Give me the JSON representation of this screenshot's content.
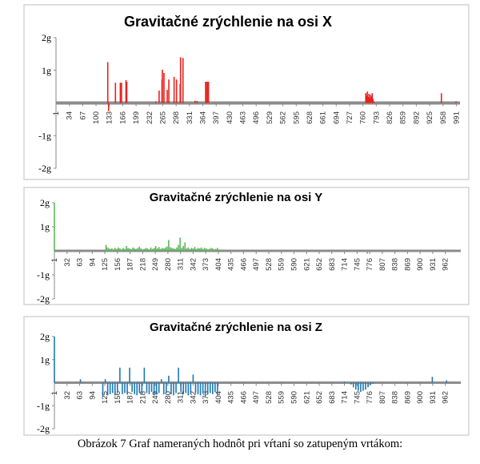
{
  "caption": "Obrázok 7 Graf nameraných hodnôt pri vŕtaní so zatupeným vrtákom:",
  "chart_data": [
    {
      "type": "bar",
      "title": "Gravitačné zrýchlenie na osi X",
      "ytick_labels": [
        "2g",
        "1g",
        "-1g",
        "-2g"
      ],
      "ytick_values": [
        2,
        1,
        -1,
        -2
      ],
      "ylim": [
        -2,
        2
      ],
      "xlim": [
        1,
        1000
      ],
      "xtick_labels": [
        "1",
        "34",
        "67",
        "100",
        "133",
        "166",
        "199",
        "232",
        "265",
        "298",
        "331",
        "364",
        "397",
        "430",
        "463",
        "496",
        "529",
        "562",
        "595",
        "628",
        "661",
        "694",
        "727",
        "760",
        "793",
        "826",
        "859",
        "892",
        "925",
        "958",
        "991"
      ],
      "color": "#e8221e",
      "series": [
        {
          "x": [
            129,
            131,
            148,
            160,
            163,
            174,
            176,
            248,
            256,
            263,
            264,
            268,
            276,
            280,
            293,
            299,
            308,
            309,
            315,
            345,
            350,
            371,
            373,
            376,
            378,
            767,
            769,
            771,
            773,
            775,
            777,
            779,
            781,
            783,
            785,
            787,
            954,
            990
          ],
          "values": [
            1.25,
            -0.25,
            0.62,
            0.62,
            0.62,
            0.7,
            0.65,
            0.05,
            0.38,
            0.72,
            1.02,
            0.92,
            0.4,
            0.72,
            0.8,
            0.72,
            0.58,
            1.4,
            1.38,
            0.07,
            0.06,
            0.65,
            0.65,
            0.65,
            0.65,
            0.3,
            0.22,
            0.35,
            0.18,
            0.28,
            0.15,
            0.25,
            0.2,
            0.3,
            0.12,
            0.05,
            0.3,
            0.05
          ]
        }
      ],
      "grid": false
    },
    {
      "type": "bar",
      "title": "Gravitačné zrýchlenie na osi Y",
      "ytick_labels": [
        "2g",
        "1g",
        "-1g",
        "-2g"
      ],
      "ytick_values": [
        2,
        1,
        -1,
        -2
      ],
      "ylim": [
        -2,
        2
      ],
      "xlim": [
        1,
        1000
      ],
      "xtick_labels": [
        "1",
        "32",
        "63",
        "94",
        "125",
        "156",
        "187",
        "218",
        "249",
        "280",
        "311",
        "342",
        "373",
        "404",
        "435",
        "466",
        "497",
        "528",
        "559",
        "590",
        "621",
        "652",
        "683",
        "714",
        "745",
        "776",
        "807",
        "838",
        "869",
        "900",
        "931",
        "962"
      ],
      "color": "#5cb85c",
      "series": [
        {
          "x": [
            1,
            128,
            130,
            134,
            138,
            142,
            146,
            150,
            154,
            158,
            162,
            166,
            170,
            174,
            178,
            182,
            186,
            190,
            194,
            198,
            202,
            206,
            210,
            214,
            218,
            222,
            226,
            230,
            234,
            238,
            242,
            246,
            250,
            254,
            258,
            262,
            266,
            270,
            274,
            278,
            282,
            286,
            290,
            294,
            298,
            302,
            306,
            310,
            314,
            318,
            322,
            326,
            330,
            334,
            338,
            342,
            346,
            350,
            354,
            358,
            362,
            366,
            370,
            374,
            378,
            382,
            386,
            390,
            394,
            398,
            402,
            712,
            716,
            770
          ],
          "values": [
            2.0,
            0.25,
            0.15,
            0.12,
            0.08,
            0.1,
            0.06,
            0.12,
            0.08,
            0.14,
            0.1,
            0.06,
            0.12,
            0.08,
            0.2,
            0.12,
            0.1,
            0.06,
            0.14,
            0.1,
            0.08,
            0.12,
            0.18,
            0.1,
            0.06,
            0.08,
            0.12,
            0.1,
            0.06,
            0.14,
            0.08,
            0.12,
            0.2,
            0.1,
            0.16,
            0.08,
            0.12,
            0.1,
            0.14,
            0.18,
            0.45,
            0.15,
            0.12,
            0.1,
            0.08,
            0.14,
            0.25,
            0.55,
            0.12,
            0.2,
            0.35,
            0.1,
            0.14,
            0.08,
            0.12,
            0.1,
            0.16,
            0.08,
            0.12,
            0.1,
            0.14,
            0.08,
            0.12,
            0.1,
            0.06,
            0.08,
            0.12,
            0.1,
            0.06,
            0.08,
            0.12,
            0.05,
            0.03,
            -0.12
          ]
        }
      ],
      "grid": false
    },
    {
      "type": "bar",
      "title": "Gravitačné zrýchlenie na osi Z",
      "ytick_labels": [
        "2g",
        "1g",
        "-1g",
        "-2g"
      ],
      "ytick_values": [
        2,
        1,
        -1,
        -2
      ],
      "ylim": [
        -2,
        2
      ],
      "xlim": [
        1,
        1000
      ],
      "xtick_labels": [
        "1",
        "32",
        "63",
        "94",
        "125",
        "156",
        "187",
        "218",
        "249",
        "280",
        "311",
        "342",
        "373",
        "404",
        "435",
        "466",
        "497",
        "528",
        "559",
        "590",
        "621",
        "652",
        "683",
        "714",
        "745",
        "776",
        "807",
        "838",
        "869",
        "900",
        "931",
        "962"
      ],
      "color": "#1f77b4",
      "series": [
        {
          "x": [
            1,
            65,
            120,
            126,
            132,
            138,
            144,
            150,
            156,
            162,
            168,
            174,
            180,
            186,
            192,
            198,
            204,
            210,
            216,
            222,
            228,
            234,
            240,
            246,
            252,
            258,
            264,
            270,
            276,
            282,
            288,
            294,
            300,
            306,
            312,
            318,
            324,
            330,
            336,
            342,
            348,
            354,
            360,
            366,
            372,
            378,
            384,
            390,
            396,
            402,
            714,
            730,
            736,
            742,
            748,
            754,
            760,
            766,
            772,
            778,
            784,
            930,
            965
          ],
          "values": [
            2.0,
            0.15,
            -0.6,
            0.15,
            -0.55,
            -0.5,
            -0.45,
            -0.55,
            -0.4,
            0.65,
            -0.5,
            -0.45,
            -0.5,
            0.65,
            -0.4,
            -0.5,
            -0.55,
            -0.45,
            -0.5,
            0.65,
            -0.45,
            -0.5,
            -0.4,
            -0.55,
            -0.5,
            -0.45,
            0.15,
            -0.5,
            -0.45,
            0.3,
            -0.5,
            -0.55,
            -0.45,
            0.65,
            -0.4,
            -0.5,
            -0.45,
            -0.55,
            -0.5,
            0.35,
            -0.45,
            -0.5,
            -0.55,
            -0.45,
            -0.6,
            -0.5,
            -0.45,
            -0.5,
            -0.4,
            -0.55,
            0.05,
            -0.08,
            -0.2,
            -0.3,
            -0.35,
            -0.4,
            -0.35,
            -0.3,
            -0.2,
            -0.1,
            -0.05,
            0.25,
            0.1
          ]
        }
      ],
      "grid": false
    }
  ]
}
